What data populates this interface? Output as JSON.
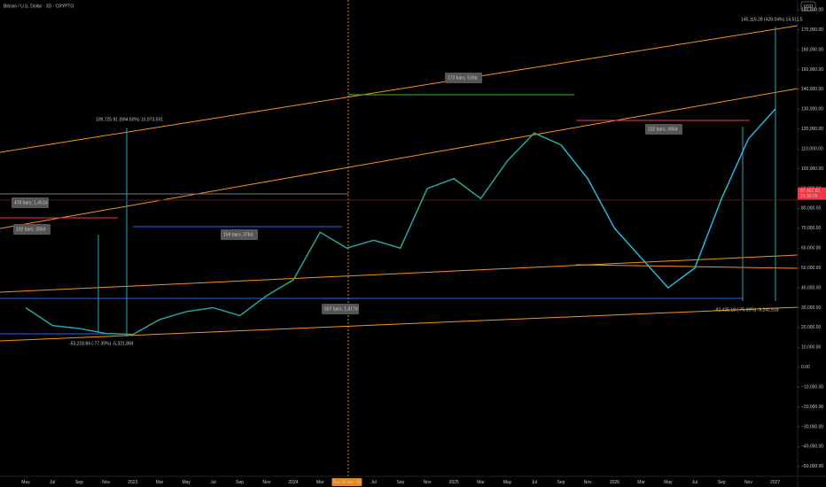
{
  "header": {
    "symbol": "Bitcoin / U.S. Dollar · 3D · CRYPTO",
    "currency": "USD"
  },
  "chart_data": {
    "type": "line",
    "categories": [
      "May",
      "Jul",
      "Sep",
      "Nov",
      "2023",
      "Mar",
      "May",
      "Jul",
      "Sep",
      "Nov",
      "2024",
      "Mar",
      "Tue 30 Apr '24",
      "Jul",
      "Sep",
      "Nov",
      "2025",
      "Mar",
      "May",
      "Jul",
      "Sep",
      "Nov",
      "2026",
      "Mar",
      "May",
      "Jul",
      "Sep",
      "Nov",
      "2027"
    ],
    "series": [
      {
        "color": "#26a69a",
        "values": [
          30000,
          21000,
          19500,
          17000,
          16500,
          24000,
          28000,
          30000,
          26000,
          36000,
          44000,
          68000,
          60000,
          64000,
          60000,
          90000,
          95000,
          85000,
          104000,
          118000,
          112000,
          null,
          null,
          null,
          null,
          null,
          null,
          null,
          null
        ]
      },
      {
        "color": "#22b8d8",
        "values": [
          null,
          null,
          null,
          null,
          null,
          null,
          null,
          null,
          null,
          null,
          null,
          null,
          null,
          null,
          null,
          null,
          null,
          null,
          null,
          null,
          112000,
          95000,
          70000,
          55000,
          40000,
          50000,
          85000,
          115000,
          130000
        ]
      }
    ],
    "ylim": [
      -55000,
      185000
    ],
    "yticks": [
      {
        "value": 180000,
        "label": "180,000.00"
      },
      {
        "value": 170000,
        "label": "170,000.00"
      },
      {
        "value": 160000,
        "label": "160,000.00"
      },
      {
        "value": 150000,
        "label": "150,000.00"
      },
      {
        "value": 140000,
        "label": "140,000.00"
      },
      {
        "value": 130000,
        "label": "130,000.00"
      },
      {
        "value": 120000,
        "label": "120,000.00"
      },
      {
        "value": 110000,
        "label": "110,000.00"
      },
      {
        "value": 100000,
        "label": "100,000.00"
      },
      {
        "value": 90000,
        "label": "90,000.00"
      },
      {
        "value": 80000,
        "label": "80,000.00"
      },
      {
        "value": 70000,
        "label": "70,000.00"
      },
      {
        "value": 60000,
        "label": "60,000.00"
      },
      {
        "value": 50000,
        "label": "50,000.00"
      },
      {
        "value": 40000,
        "label": "40,000.00"
      },
      {
        "value": 30000,
        "label": "30,000.00"
      },
      {
        "value": 20000,
        "label": "20,000.00"
      },
      {
        "value": 10000,
        "label": "10,000.00"
      },
      {
        "value": 0,
        "label": "0.00"
      },
      {
        "value": -10000,
        "label": "−10,000.00"
      },
      {
        "value": -20000,
        "label": "−20,000.00"
      },
      {
        "value": -30000,
        "label": "−30,000.00"
      },
      {
        "value": -40000,
        "label": "−40,000.00"
      },
      {
        "value": -50000,
        "label": "−50,000.00"
      }
    ],
    "current_price": {
      "value": 87467.81,
      "label": "87,467.81"
    },
    "countdown": "21:30:16",
    "highlight_category": 12,
    "annotations": [
      "145,115.28 (428.04%) 14,511,5",
      "173 bars, 519d",
      "109,725.91 (694.50%) 10,973,591",
      "132 bars, 395d",
      "478 bars, 1,451d",
      "132 bars, 395d",
      "159 bars, 476d",
      "607 bars, 1,817d",
      "-92,425.18 (-75.39%) -9,242,518",
      "-53,218.84 (-77.30%) -5,321,884"
    ]
  }
}
